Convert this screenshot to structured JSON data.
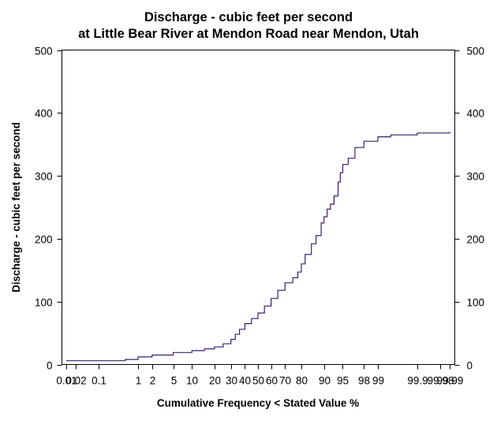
{
  "chart_data": {
    "type": "line",
    "title": [
      "Discharge - cubic feet per second",
      "at Little Bear River at Mendon Road near Mendon, Utah"
    ],
    "xlabel": "Cumulative Frequency < Stated Value %",
    "ylabel": "Discharge - cubic feet per second",
    "x_scale": "normal-probability",
    "ylim": [
      0,
      500
    ],
    "y_ticks": [
      "0",
      "100",
      "200",
      "300",
      "400",
      "500"
    ],
    "x_ticks": [
      {
        "value": 0.01,
        "label": "0.01"
      },
      {
        "value": 0.02,
        "label": "0.02"
      },
      {
        "value": 0.1,
        "label": "0.1"
      },
      {
        "value": 1,
        "label": "1"
      },
      {
        "value": 2,
        "label": "2"
      },
      {
        "value": 5,
        "label": "5"
      },
      {
        "value": 10,
        "label": "10"
      },
      {
        "value": 20,
        "label": "20"
      },
      {
        "value": 30,
        "label": "30"
      },
      {
        "value": 40,
        "label": "40"
      },
      {
        "value": 50,
        "label": "50"
      },
      {
        "value": 60,
        "label": "60"
      },
      {
        "value": 70,
        "label": "70"
      },
      {
        "value": 80,
        "label": "80"
      },
      {
        "value": 90,
        "label": "90"
      },
      {
        "value": 95,
        "label": "95"
      },
      {
        "value": 98,
        "label": "98"
      },
      {
        "value": 99,
        "label": "99"
      },
      {
        "value": 99.9,
        "label": "99.9"
      },
      {
        "value": 99.98,
        "label": "99.98"
      },
      {
        "value": 99.99,
        "label": "99.99"
      }
    ],
    "grid": false,
    "right_axis_mirrored": true,
    "line_color": "#3c1f6e",
    "series": [
      {
        "x": [
          0.01,
          0.1,
          0.5,
          1,
          2,
          5,
          10,
          15,
          20,
          25,
          30,
          33,
          36,
          40,
          45,
          50,
          55,
          60,
          65,
          70,
          75,
          78,
          80,
          82,
          85,
          87,
          89,
          90,
          91,
          92,
          93,
          94,
          94.5,
          95,
          96,
          97,
          98,
          99,
          99.5,
          99.9,
          99.99
        ],
        "y": [
          6,
          6,
          8,
          12,
          15,
          19,
          22,
          25,
          28,
          33,
          40,
          48,
          56,
          65,
          73,
          82,
          93,
          105,
          118,
          130,
          138,
          147,
          160,
          175,
          192,
          205,
          225,
          235,
          247,
          255,
          268,
          290,
          305,
          318,
          328,
          345,
          355,
          362,
          365,
          368,
          370
        ]
      }
    ]
  }
}
